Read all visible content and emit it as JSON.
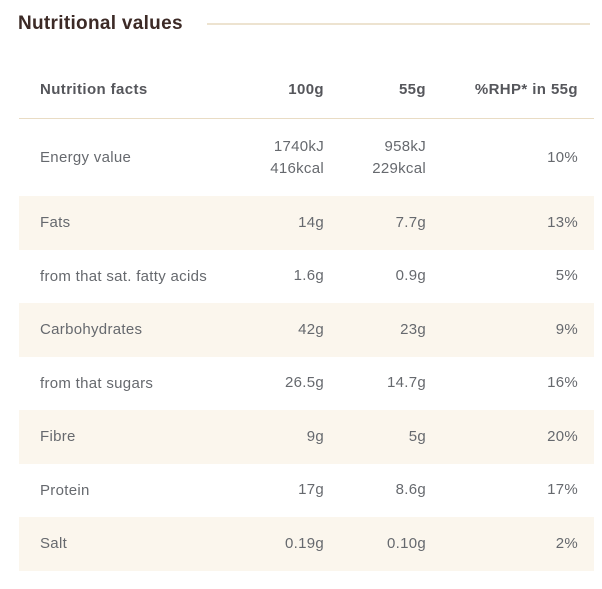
{
  "title": "Nutritional values",
  "table": {
    "header": {
      "label": "Nutrition facts",
      "col_100g": "100g",
      "col_55g": "55g",
      "col_rhp": "%RHP* in 55g"
    },
    "rows": [
      {
        "label": "Energy value",
        "per_100g": [
          "1740kJ",
          "416kcal"
        ],
        "per_55g": [
          "958kJ",
          "229kcal"
        ],
        "rhp": "10%"
      },
      {
        "label": "Fats",
        "per_100g": [
          "14g"
        ],
        "per_55g": [
          "7.7g"
        ],
        "rhp": "13%"
      },
      {
        "label": "from that sat. fatty acids",
        "per_100g": [
          "1.6g"
        ],
        "per_55g": [
          "0.9g"
        ],
        "rhp": "5%"
      },
      {
        "label": "Carbohydrates",
        "per_100g": [
          "42g"
        ],
        "per_55g": [
          "23g"
        ],
        "rhp": "9%"
      },
      {
        "label": "from that sugars",
        "per_100g": [
          "26.5g"
        ],
        "per_55g": [
          "14.7g"
        ],
        "rhp": "16%"
      },
      {
        "label": "Fibre",
        "per_100g": [
          "9g"
        ],
        "per_55g": [
          "5g"
        ],
        "rhp": "20%"
      },
      {
        "label": "Protein",
        "per_100g": [
          "17g"
        ],
        "per_55g": [
          "8.6g"
        ],
        "rhp": "17%"
      },
      {
        "label": "Salt",
        "per_100g": [
          "0.19g"
        ],
        "per_55g": [
          "0.10g"
        ],
        "rhp": "2%"
      }
    ]
  },
  "chart_data": {
    "type": "table",
    "title": "Nutritional values",
    "columns": [
      "Nutrition facts",
      "100g",
      "55g",
      "%RHP* in 55g"
    ],
    "rows": [
      [
        "Energy value",
        "1740kJ / 416kcal",
        "958kJ / 229kcal",
        "10%"
      ],
      [
        "Fats",
        "14g",
        "7.7g",
        "13%"
      ],
      [
        "from that sat. fatty acids",
        "1.6g",
        "0.9g",
        "5%"
      ],
      [
        "Carbohydrates",
        "42g",
        "23g",
        "9%"
      ],
      [
        "from that sugars",
        "26.5g",
        "14.7g",
        "16%"
      ],
      [
        "Fibre",
        "9g",
        "5g",
        "20%"
      ],
      [
        "Protein",
        "17g",
        "8.6g",
        "17%"
      ],
      [
        "Salt",
        "0.19g",
        "0.10g",
        "2%"
      ]
    ],
    "layout": {
      "alternating_row_shading": true,
      "shaded_rows": [
        "Fats",
        "Carbohydrates",
        "Fibre",
        "Salt"
      ],
      "numeric_columns_alignment": "right"
    }
  },
  "colors": {
    "title_text": "#3c2a26",
    "header_text": "#55565b",
    "body_text": "#66696e",
    "row_alt_background": "#fbf6ed",
    "divider": "#e9dcc4",
    "page_background": "#ffffff"
  }
}
